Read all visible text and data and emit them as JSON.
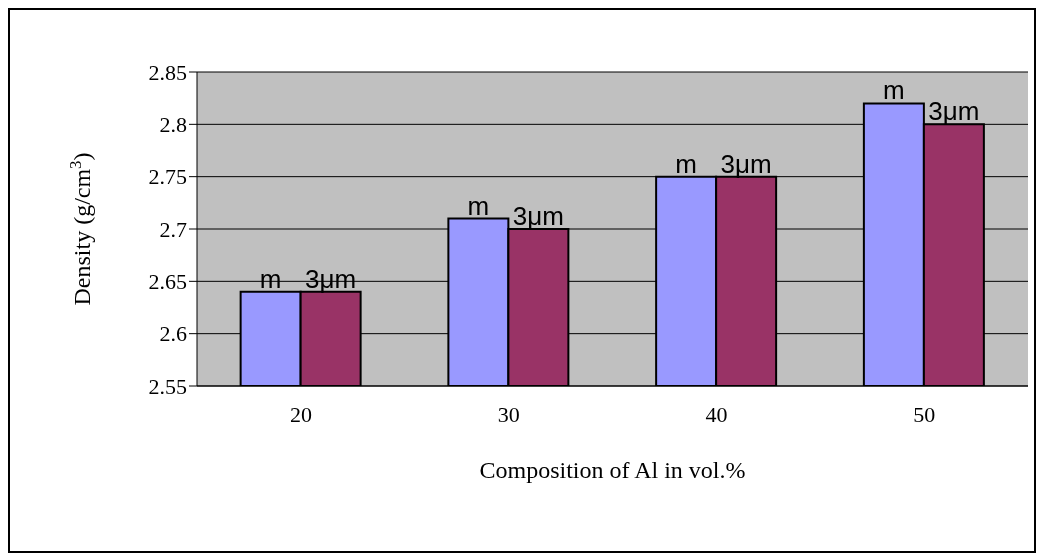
{
  "chart_data": {
    "type": "bar",
    "xlabel": "Composition of Al in vol.%",
    "ylabel": "Density (g/cm$^{3}$)",
    "categories": [
      "20",
      "30",
      "40",
      "50"
    ],
    "series": [
      {
        "name": "m",
        "color": "#9999ff",
        "values": [
          2.64,
          2.71,
          2.75,
          2.82
        ]
      },
      {
        "name": "3μm",
        "color": "#993366",
        "values": [
          2.64,
          2.7,
          2.75,
          2.8
        ]
      }
    ],
    "ylim": [
      2.55,
      2.85
    ],
    "yticks": [
      2.55,
      2.6,
      2.65,
      2.7,
      2.75,
      2.8,
      2.85
    ],
    "grid": "y",
    "legend": false
  }
}
